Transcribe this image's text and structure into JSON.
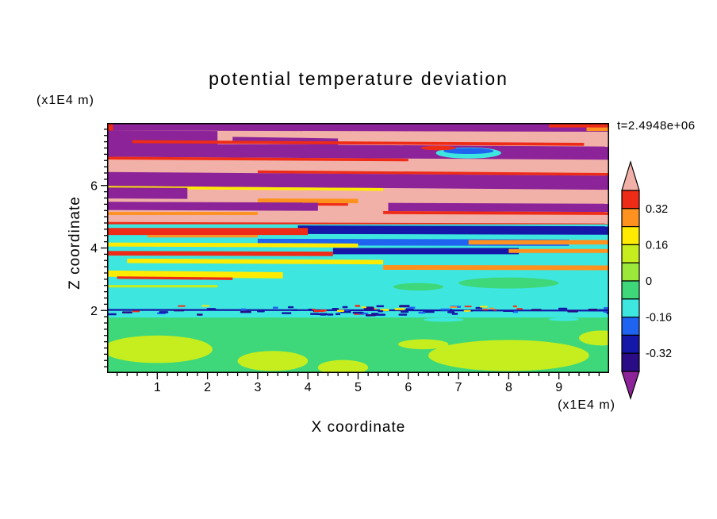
{
  "chart_data": {
    "type": "heatmap",
    "title": "potential temperature deviation",
    "xlabel": "X coordinate",
    "ylabel": "Z coordinate",
    "time_label": "t=2.4948e+06",
    "x_axis": {
      "unit": "(x1E4 m)",
      "range": [
        0,
        10
      ],
      "major_ticks": [
        1,
        2,
        3,
        4,
        5,
        6,
        7,
        8,
        9
      ],
      "minor_step": 0.2
    },
    "z_axis": {
      "unit": "(x1E4 m)",
      "range": [
        0,
        8
      ],
      "major_ticks": [
        2,
        4,
        6
      ],
      "minor_step": 0.2
    },
    "colorbar": {
      "tick_labels": [
        "0.32",
        "0.16",
        "0",
        "-0.16",
        "-0.32"
      ],
      "label_boundaries": [
        1,
        3,
        5,
        7,
        9
      ],
      "levels": [
        -0.4,
        -0.32,
        -0.24,
        -0.16,
        -0.08,
        0,
        0.08,
        0.16,
        0.24,
        0.32,
        0.4
      ],
      "segment_colors": [
        "red",
        "orange",
        "yellow",
        "ygreen",
        "lgreen",
        "green",
        "cyan",
        "blue",
        "navy",
        "dnavy"
      ],
      "above_max_color": "pink",
      "below_min_color": "purple"
    },
    "palette": {
      "pink": "#f2b1a8",
      "red": "#ee2b16",
      "orange": "#ff911e",
      "yellow": "#ffeb00",
      "ygreen": "#c6ee1e",
      "lgreen": "#9be83a",
      "green": "#3ed87a",
      "cyan": "#3ee6e0",
      "blue": "#1f64f0",
      "navy": "#1517a8",
      "dnavy": "#2a0c86",
      "purple": "#8c2398"
    },
    "layers": [
      {
        "t": "band",
        "x": [
          0,
          1
        ],
        "y": [
          0.0,
          0.41
        ],
        "c": "pink"
      },
      {
        "t": "band",
        "x": [
          0,
          1
        ],
        "y": [
          0.0,
          0.03
        ],
        "s": 0.005,
        "c": "purple"
      },
      {
        "t": "band",
        "x": [
          0.88,
          1
        ],
        "y": [
          0.0,
          0.018
        ],
        "c": "red"
      },
      {
        "t": "band",
        "x": [
          0.955,
          1
        ],
        "y": [
          0.018,
          0.032
        ],
        "c": "orange"
      },
      {
        "t": "band",
        "x": [
          0,
          0.012
        ],
        "y": [
          0.0,
          0.075
        ],
        "c": "red"
      },
      {
        "t": "band",
        "x": [
          0,
          0.22
        ],
        "y": [
          0.03,
          0.092
        ],
        "s": 0.01,
        "c": "purple"
      },
      {
        "t": "band",
        "x": [
          0.25,
          0.46
        ],
        "y": [
          0.048,
          0.075
        ],
        "s": 0.03,
        "c": "purple"
      },
      {
        "t": "band",
        "x": [
          0.05,
          0.95
        ],
        "y": [
          0.068,
          0.08
        ],
        "s": 0.012,
        "c": "red"
      },
      {
        "t": "band",
        "x": [
          0,
          1
        ],
        "y": [
          0.082,
          0.135
        ],
        "s": 0.012,
        "c": "purple"
      },
      {
        "t": "band",
        "x": [
          0,
          0.6
        ],
        "y": [
          0.135,
          0.146
        ],
        "s": 0.012,
        "c": "red"
      },
      {
        "t": "band",
        "x": [
          0.3,
          1
        ],
        "y": [
          0.185,
          0.196
        ],
        "s": 0.015,
        "c": "red"
      },
      {
        "t": "band",
        "x": [
          0,
          1
        ],
        "y": [
          0.196,
          0.252
        ],
        "s": 0.015,
        "c": "purple"
      },
      {
        "t": "band",
        "x": [
          0,
          0.55
        ],
        "y": [
          0.252,
          0.263
        ],
        "s": 0.015,
        "c": "yellow"
      },
      {
        "t": "band",
        "x": [
          0,
          0.16
        ],
        "y": [
          0.258,
          0.302
        ],
        "s": 0.01,
        "c": "purple"
      },
      {
        "t": "blob",
        "x": 0.72,
        "y": 0.12,
        "rx": 0.065,
        "ry": 0.022,
        "c": "cyan"
      },
      {
        "t": "blob",
        "x": 0.72,
        "y": 0.112,
        "rx": 0.05,
        "ry": 0.012,
        "c": "blue"
      },
      {
        "t": "blob",
        "x": 0.66,
        "y": 0.1,
        "rx": 0.035,
        "ry": 0.009,
        "c": "red"
      },
      {
        "t": "band",
        "x": [
          0.3,
          0.5
        ],
        "y": [
          0.3,
          0.318
        ],
        "s": 0.006,
        "c": "orange"
      },
      {
        "t": "band",
        "x": [
          0.32,
          0.48
        ],
        "y": [
          0.318,
          0.328
        ],
        "s": 0.006,
        "c": "red"
      },
      {
        "t": "band",
        "x": [
          0,
          0.42
        ],
        "y": [
          0.315,
          0.348
        ],
        "s": 0.008,
        "c": "purple"
      },
      {
        "t": "band",
        "x": [
          0.56,
          1
        ],
        "y": [
          0.315,
          0.348
        ],
        "s": 0.008,
        "c": "purple"
      },
      {
        "t": "band",
        "x": [
          0.55,
          1
        ],
        "y": [
          0.348,
          0.36
        ],
        "s": 0.008,
        "c": "red"
      },
      {
        "t": "band",
        "x": [
          0,
          0.3
        ],
        "y": [
          0.356,
          0.368
        ],
        "c": "orange"
      },
      {
        "t": "band",
        "x": [
          0,
          1
        ],
        "y": [
          0.396,
          0.41
        ],
        "s": 0.006,
        "c": "red"
      },
      {
        "t": "band",
        "x": [
          0,
          1
        ],
        "y": [
          0.405,
          0.79
        ],
        "c": "cyan"
      },
      {
        "t": "band",
        "x": [
          0.38,
          1
        ],
        "y": [
          0.408,
          0.442
        ],
        "s": 0.005,
        "c": "navy"
      },
      {
        "t": "band",
        "x": [
          0,
          0.4
        ],
        "y": [
          0.42,
          0.448
        ],
        "c": "red"
      },
      {
        "t": "band",
        "x": [
          0.08,
          0.3
        ],
        "y": [
          0.448,
          0.458
        ],
        "c": "orange"
      },
      {
        "t": "band",
        "x": [
          0.3,
          0.92
        ],
        "y": [
          0.462,
          0.488
        ],
        "s": 0.004,
        "c": "blue"
      },
      {
        "t": "band",
        "x": [
          0,
          0.5
        ],
        "y": [
          0.478,
          0.494
        ],
        "s": 0.008,
        "c": "yellow"
      },
      {
        "t": "band",
        "x": [
          0.72,
          1
        ],
        "y": [
          0.468,
          0.486
        ],
        "c": "orange"
      },
      {
        "t": "band",
        "x": [
          0.45,
          0.82
        ],
        "y": [
          0.5,
          0.525
        ],
        "c": "navy"
      },
      {
        "t": "band",
        "x": [
          0,
          0.45
        ],
        "y": [
          0.512,
          0.53
        ],
        "s": 0.006,
        "c": "red"
      },
      {
        "t": "band",
        "x": [
          0.8,
          1
        ],
        "y": [
          0.504,
          0.52
        ],
        "c": "orange"
      },
      {
        "t": "band",
        "x": [
          0.04,
          0.55
        ],
        "y": [
          0.542,
          0.56
        ],
        "s": 0.01,
        "c": "yellow"
      },
      {
        "t": "band",
        "x": [
          0.55,
          1
        ],
        "y": [
          0.566,
          0.585
        ],
        "s": 0.004,
        "c": "orange"
      },
      {
        "t": "band",
        "x": [
          0,
          0.35
        ],
        "y": [
          0.59,
          0.615
        ],
        "s": 0.02,
        "c": "yellow"
      },
      {
        "t": "band",
        "x": [
          0.02,
          0.25
        ],
        "y": [
          0.613,
          0.623
        ],
        "s": 0.02,
        "c": "red"
      },
      {
        "t": "blob",
        "x": 0.8,
        "y": 0.64,
        "rx": 0.1,
        "ry": 0.022,
        "c": "green"
      },
      {
        "t": "blob",
        "x": 0.62,
        "y": 0.655,
        "rx": 0.05,
        "ry": 0.015,
        "c": "green"
      },
      {
        "t": "band",
        "x": [
          0,
          0.22
        ],
        "y": [
          0.648,
          0.658
        ],
        "c": "ygreen"
      },
      {
        "t": "band",
        "x": [
          0,
          1
        ],
        "y": [
          0.778,
          1.0
        ],
        "c": "green"
      },
      {
        "t": "blob",
        "x": 0.67,
        "y": 0.787,
        "rx": 0.04,
        "ry": 0.008,
        "c": "cyan"
      },
      {
        "t": "blob",
        "x": 0.91,
        "y": 0.785,
        "rx": 0.03,
        "ry": 0.007,
        "c": "cyan"
      },
      {
        "t": "blob",
        "x": 0.1,
        "y": 0.905,
        "rx": 0.11,
        "ry": 0.055,
        "c": "ygreen"
      },
      {
        "t": "blob",
        "x": 0.33,
        "y": 0.952,
        "rx": 0.07,
        "ry": 0.04,
        "c": "ygreen"
      },
      {
        "t": "blob",
        "x": 0.47,
        "y": 0.978,
        "rx": 0.05,
        "ry": 0.03,
        "c": "ygreen"
      },
      {
        "t": "blob",
        "x": 0.8,
        "y": 0.93,
        "rx": 0.16,
        "ry": 0.062,
        "c": "ygreen"
      },
      {
        "t": "blob",
        "x": 0.63,
        "y": 0.885,
        "rx": 0.05,
        "ry": 0.02,
        "c": "ygreen"
      },
      {
        "t": "blob",
        "x": 0.985,
        "y": 0.86,
        "rx": 0.045,
        "ry": 0.03,
        "c": "ygreen"
      },
      {
        "t": "band",
        "x": [
          0,
          1
        ],
        "y": [
          0.744,
          0.751
        ],
        "s": 0.003,
        "c": "navy"
      },
      {
        "t": "dashes",
        "x": [
          0,
          1
        ],
        "y": 0.747,
        "j": 0.016,
        "n": 48,
        "len": 0.016,
        "h": 0.008,
        "seed": 11,
        "cs": [
          "navy",
          "blue",
          "navy",
          "dnavy",
          "navy"
        ]
      },
      {
        "t": "dashes",
        "x": [
          0.05,
          0.95
        ],
        "y": 0.74,
        "j": 0.012,
        "n": 16,
        "len": 0.011,
        "h": 0.006,
        "seed": 23,
        "cs": [
          "red",
          "yellow",
          "orange",
          "red"
        ]
      },
      {
        "t": "dashes",
        "x": [
          0.4,
          0.6
        ],
        "y": 0.746,
        "j": 0.02,
        "n": 20,
        "len": 0.014,
        "h": 0.008,
        "seed": 5,
        "cs": [
          "navy",
          "red",
          "blue",
          "yellow",
          "navy",
          "dnavy"
        ]
      }
    ]
  }
}
